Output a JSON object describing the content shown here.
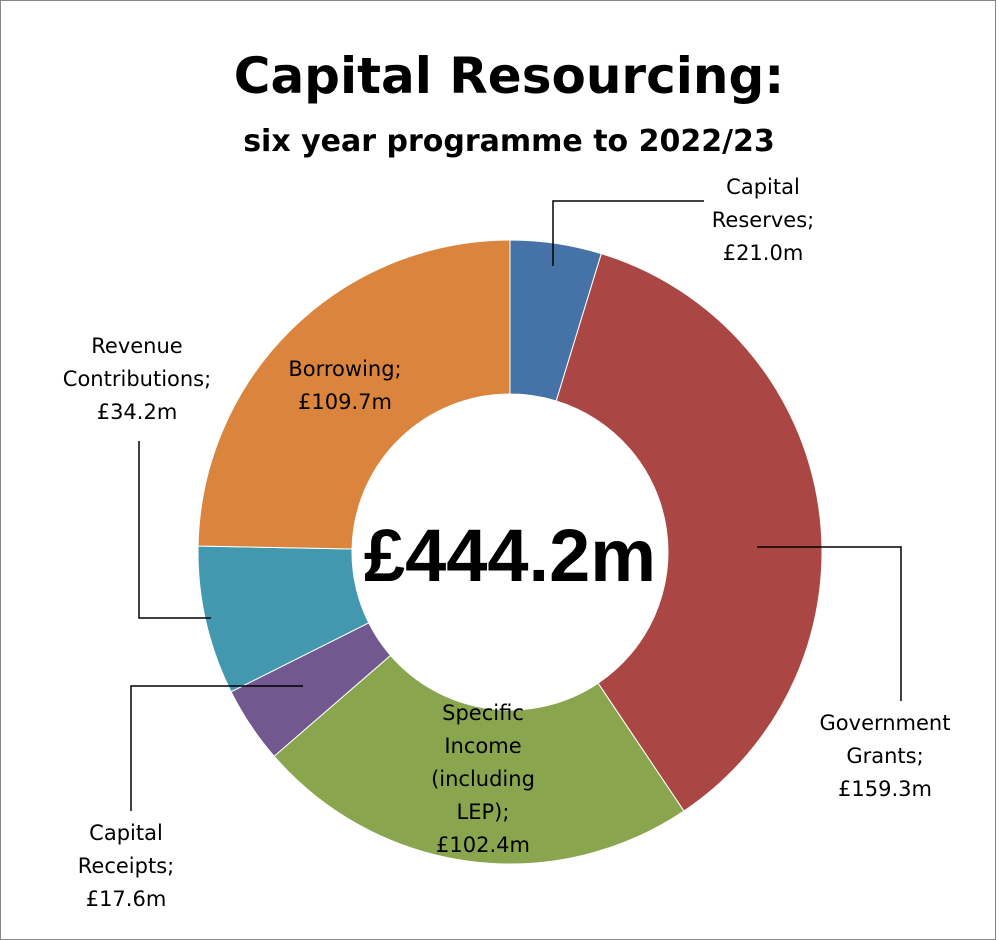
{
  "chart_data": {
    "type": "pie",
    "title": "Capital Resourcing:",
    "subtitle": "six year programme to 2022/23",
    "center_label": "£444.2m",
    "units": "£m",
    "slices": [
      {
        "label": "Capital Reserves",
        "value": 21.0,
        "value_label": "£21.0m",
        "color": "#4572A7"
      },
      {
        "label": "Government Grants",
        "value": 159.3,
        "value_label": "£159.3m",
        "color": "#AA4643"
      },
      {
        "label": "Specific Income (including LEP)",
        "value": 102.4,
        "value_label": "£102.4m",
        "color": "#89A54E"
      },
      {
        "label": "Capital Receipts",
        "value": 17.6,
        "value_label": "£17.6m",
        "color": "#71588F"
      },
      {
        "label": "Revenue Contributions",
        "value": 34.2,
        "value_label": "£34.2m",
        "color": "#4198AF"
      },
      {
        "label": "Borrowing",
        "value": 109.7,
        "value_label": "£109.7m",
        "color": "#DB843D"
      }
    ],
    "data_labels": [
      [
        "Capital",
        "Reserves;",
        "£21.0m"
      ],
      [
        "Government",
        "Grants;",
        "£159.3m"
      ],
      [
        "Specific",
        "Income",
        "(including",
        "LEP);",
        "£102.4m"
      ],
      [
        "Capital",
        "Receipts;",
        "£17.6m"
      ],
      [
        "Revenue",
        "Contributions;",
        "£34.2m"
      ],
      [
        "Borrowing;",
        "£109.7m"
      ]
    ],
    "legend": "none"
  }
}
